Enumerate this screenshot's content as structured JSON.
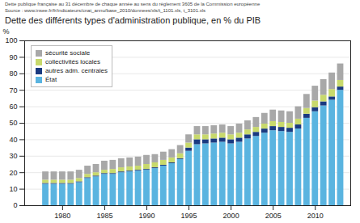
{
  "chart_data": {
    "type": "bar",
    "stacked": true,
    "title": "Dette des différents types d'administration publique, en % du PIB",
    "annotations": [
      "Dette publique française au 31 décembre de chaque année au sens du règlement 3605 de la Commission européenne",
      "Source : www.insee.fr/fr/indicateurs/cnat_annu/base_2010/donnees/xls/t_1101.xls, t_3101.xls"
    ],
    "ylabel": "%",
    "x": [
      1978,
      1979,
      1980,
      1981,
      1982,
      1983,
      1984,
      1985,
      1986,
      1987,
      1988,
      1989,
      1990,
      1991,
      1992,
      1993,
      1994,
      1995,
      1996,
      1997,
      1998,
      1999,
      2000,
      2001,
      2002,
      2003,
      2004,
      2005,
      2006,
      2007,
      2008,
      2009,
      2010,
      2011,
      2012,
      2013
    ],
    "series": [
      {
        "name": "État",
        "color": "#5ab4e0",
        "values": [
          13.0,
          13.0,
          13.0,
          13.0,
          14.0,
          16.5,
          17.5,
          19.0,
          19.0,
          20.0,
          20.5,
          21.0,
          21.5,
          22.5,
          24.0,
          25.5,
          28.0,
          33.0,
          37.0,
          37.5,
          38.0,
          38.5,
          37.5,
          38.5,
          40.5,
          42.0,
          44.0,
          45.5,
          45.0,
          44.5,
          46.5,
          53.0,
          57.0,
          60.5,
          64.0,
          70.0
        ]
      },
      {
        "name": "autres adm. centrales",
        "color": "#1a3a80",
        "values": [
          0.5,
          0.5,
          0.5,
          0.5,
          0.5,
          0.5,
          0.5,
          0.5,
          0.5,
          0.5,
          0.5,
          0.5,
          0.5,
          0.5,
          0.5,
          0.5,
          0.5,
          2.0,
          3.0,
          2.5,
          2.5,
          2.5,
          2.5,
          2.5,
          2.5,
          2.5,
          2.5,
          2.5,
          2.5,
          2.5,
          2.5,
          2.5,
          2.5,
          2.5,
          2.0,
          2.0
        ]
      },
      {
        "name": "collectivités locales",
        "color": "#c8d96c",
        "values": [
          2.0,
          2.0,
          2.0,
          2.0,
          2.0,
          2.0,
          2.0,
          2.0,
          2.5,
          2.5,
          2.5,
          2.5,
          3.0,
          3.0,
          3.0,
          3.0,
          3.0,
          3.0,
          3.0,
          3.0,
          3.0,
          3.0,
          3.0,
          3.0,
          3.0,
          3.0,
          3.0,
          3.0,
          3.0,
          3.0,
          3.5,
          3.5,
          4.0,
          4.0,
          4.5,
          4.0
        ]
      },
      {
        "name": "sécurité sociale",
        "color": "#a8a8a8",
        "values": [
          5.0,
          5.0,
          5.0,
          5.0,
          5.0,
          5.0,
          5.0,
          5.5,
          5.5,
          5.5,
          5.5,
          5.5,
          5.5,
          5.0,
          5.0,
          5.0,
          5.0,
          5.0,
          5.0,
          5.0,
          5.0,
          5.0,
          5.0,
          5.5,
          5.5,
          6.0,
          6.5,
          7.0,
          7.0,
          7.0,
          7.5,
          8.5,
          9.0,
          9.5,
          10.0,
          10.0
        ]
      }
    ],
    "xlim": [
      1975.5,
      2014.2
    ],
    "xticks": [
      1980,
      1985,
      1990,
      1995,
      2000,
      2005,
      2010
    ],
    "ylim": [
      0,
      100
    ],
    "yticks": [
      0,
      10,
      20,
      30,
      40,
      50,
      60,
      70,
      80,
      90,
      100
    ],
    "grid": true,
    "legend": "upper left"
  }
}
